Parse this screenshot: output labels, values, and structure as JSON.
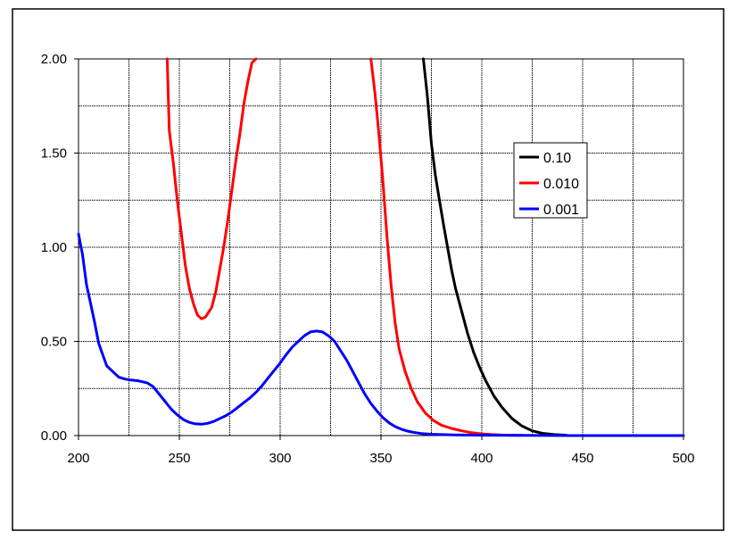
{
  "chart_data": {
    "type": "line",
    "title": "",
    "xlabel": "",
    "ylabel": "",
    "xlim": [
      200,
      500
    ],
    "ylim": [
      0,
      2
    ],
    "grid": true,
    "legend_position": "right",
    "x_ticks": [
      {
        "value": 200,
        "label": "200"
      },
      {
        "value": 250,
        "label": "250"
      },
      {
        "value": 300,
        "label": "300"
      },
      {
        "value": 350,
        "label": "350"
      },
      {
        "value": 400,
        "label": "400"
      },
      {
        "value": 450,
        "label": "450"
      },
      {
        "value": 500,
        "label": "500"
      }
    ],
    "y_ticks": [
      {
        "value": 0,
        "label": "0.00"
      },
      {
        "value": 0.5,
        "label": "0.50"
      },
      {
        "value": 1.0,
        "label": "1.00"
      },
      {
        "value": 1.5,
        "label": "1.50"
      },
      {
        "value": 2.0,
        "label": "2.00"
      }
    ],
    "x_grid": [
      225,
      250,
      275,
      300,
      325,
      350,
      375,
      400,
      425,
      450,
      475
    ],
    "y_grid": [
      0.25,
      0.5,
      0.75,
      1.0,
      1.25,
      1.5,
      1.75
    ],
    "series": [
      {
        "name": "0.10",
        "color": "#000000",
        "x": [
          371,
          373,
          375,
          377,
          379,
          381,
          383,
          385,
          387,
          390,
          393,
          396,
          399,
          402,
          406,
          410,
          415,
          420,
          425,
          430,
          436,
          442
        ],
        "y": [
          2.0,
          1.8,
          1.55,
          1.38,
          1.25,
          1.12,
          1.0,
          0.88,
          0.78,
          0.66,
          0.54,
          0.44,
          0.36,
          0.29,
          0.21,
          0.15,
          0.09,
          0.05,
          0.025,
          0.012,
          0.005,
          0.002
        ]
      },
      {
        "name": "0.010",
        "color": "#ff0000",
        "segments": [
          {
            "x": [
              244,
              245,
              247,
              249,
              251,
              253,
              255,
              257,
              259,
              261,
              263,
              266,
              268,
              270,
              272,
              274,
              276,
              278,
              280,
              282,
              284,
              286,
              288
            ],
            "y": [
              2.0,
              1.62,
              1.45,
              1.25,
              1.07,
              0.9,
              0.78,
              0.7,
              0.64,
              0.62,
              0.63,
              0.68,
              0.76,
              0.88,
              1.0,
              1.14,
              1.3,
              1.46,
              1.6,
              1.76,
              1.88,
              1.98,
              2.0
            ]
          },
          {
            "x": [
              345,
              347,
              349,
              351,
              353,
              355,
              357,
              359,
              362,
              365,
              368,
              372,
              376,
              380,
              385,
              390,
              395,
              400,
              405,
              410,
              415,
              420
            ],
            "y": [
              2.0,
              1.82,
              1.6,
              1.34,
              1.05,
              0.8,
              0.6,
              0.46,
              0.34,
              0.25,
              0.18,
              0.12,
              0.08,
              0.055,
              0.038,
              0.025,
              0.015,
              0.009,
              0.005,
              0.003,
              0.002,
              0.001
            ]
          }
        ]
      },
      {
        "name": "0.001",
        "color": "#0000ff",
        "x": [
          200,
          202,
          204,
          206,
          208,
          210,
          212,
          214,
          217,
          220,
          223,
          226,
          230,
          234,
          237,
          240,
          243,
          246,
          249,
          252,
          255,
          258,
          261,
          264,
          267,
          270,
          273,
          276,
          279,
          282,
          285,
          288,
          291,
          294,
          297,
          300,
          303,
          306,
          309,
          312,
          315,
          318,
          321,
          324,
          327,
          330,
          333,
          336,
          339,
          342,
          345,
          348,
          351,
          354,
          357,
          360,
          363,
          366,
          370,
          375,
          380,
          390,
          400,
          420,
          450,
          480,
          500
        ],
        "y": [
          1.07,
          0.96,
          0.8,
          0.7,
          0.6,
          0.49,
          0.43,
          0.37,
          0.34,
          0.31,
          0.3,
          0.295,
          0.29,
          0.28,
          0.26,
          0.22,
          0.18,
          0.14,
          0.11,
          0.085,
          0.07,
          0.062,
          0.06,
          0.065,
          0.075,
          0.09,
          0.105,
          0.125,
          0.15,
          0.175,
          0.2,
          0.23,
          0.265,
          0.305,
          0.345,
          0.385,
          0.43,
          0.47,
          0.5,
          0.53,
          0.55,
          0.555,
          0.55,
          0.53,
          0.5,
          0.45,
          0.4,
          0.34,
          0.28,
          0.22,
          0.17,
          0.13,
          0.095,
          0.068,
          0.048,
          0.034,
          0.024,
          0.017,
          0.011,
          0.007,
          0.005,
          0.003,
          0.002,
          0.001,
          0.0,
          0.0,
          0.0
        ]
      }
    ]
  }
}
